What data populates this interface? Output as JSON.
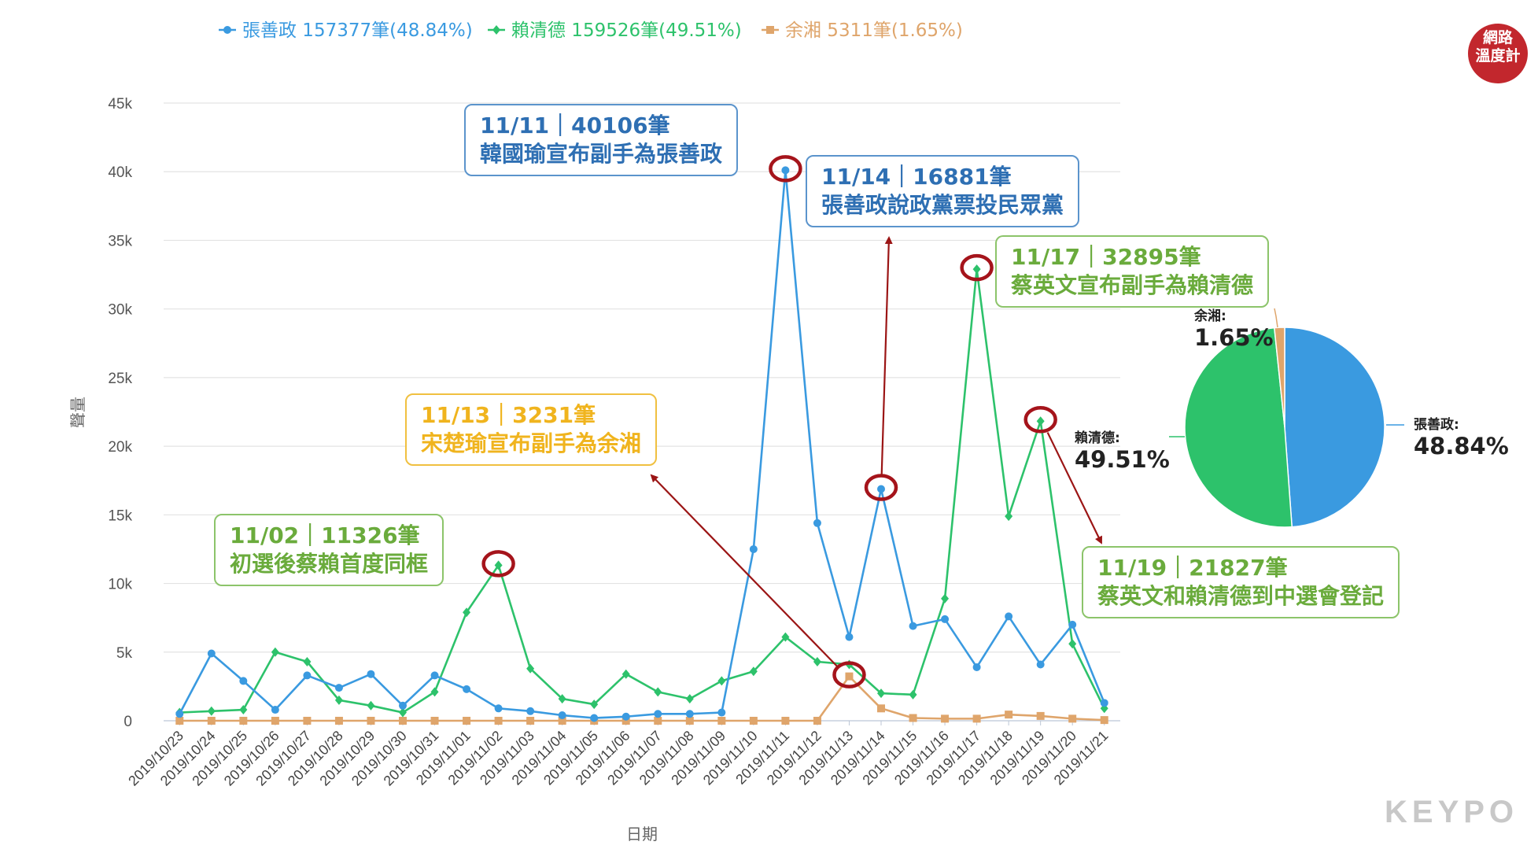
{
  "chart_data": [
    {
      "type": "line",
      "legend": {
        "placement": "top",
        "items": [
          {
            "label": "張善政 157377筆(48.84%)",
            "color": "#3a9ae0",
            "marker": "circle"
          },
          {
            "label": "賴清德 159526筆(49.51%)",
            "color": "#2dc26b",
            "marker": "diamond"
          },
          {
            "label": "余湘 5311筆(1.65%)",
            "color": "#dfa56b",
            "marker": "square"
          }
        ]
      },
      "xlabel": "日期",
      "ylabel": "聲量",
      "ylim": [
        0,
        45000
      ],
      "yticks": [
        0,
        5000,
        10000,
        15000,
        20000,
        25000,
        30000,
        35000,
        40000,
        45000
      ],
      "ytick_labels": [
        "0",
        "5k",
        "10k",
        "15k",
        "20k",
        "25k",
        "30k",
        "35k",
        "40k",
        "45k"
      ],
      "grid": true,
      "categories": [
        "2019/10/23",
        "2019/10/24",
        "2019/10/25",
        "2019/10/26",
        "2019/10/27",
        "2019/10/28",
        "2019/10/29",
        "2019/10/30",
        "2019/10/31",
        "2019/11/01",
        "2019/11/02",
        "2019/11/03",
        "2019/11/04",
        "2019/11/05",
        "2019/11/06",
        "2019/11/07",
        "2019/11/08",
        "2019/11/09",
        "2019/11/10",
        "2019/11/11",
        "2019/11/12",
        "2019/11/13",
        "2019/11/14",
        "2019/11/15",
        "2019/11/16",
        "2019/11/17",
        "2019/11/18",
        "2019/11/19",
        "2019/11/20",
        "2019/11/21"
      ],
      "series": [
        {
          "name": "張善政",
          "color": "#3a9ae0",
          "marker": "circle",
          "values": [
            500,
            4900,
            2900,
            800,
            3300,
            2400,
            3400,
            1100,
            3300,
            2300,
            900,
            700,
            400,
            200,
            300,
            500,
            500,
            600,
            12500,
            40106,
            14400,
            6100,
            16881,
            6900,
            7400,
            3900,
            7600,
            4100,
            7000,
            1300
          ]
        },
        {
          "name": "賴清德",
          "color": "#2dc26b",
          "marker": "diamond",
          "values": [
            600,
            700,
            800,
            5000,
            4300,
            1500,
            1100,
            600,
            2100,
            7900,
            11326,
            3800,
            1600,
            1200,
            3400,
            2100,
            1600,
            2900,
            3600,
            6100,
            4300,
            4100,
            2000,
            1900,
            8900,
            32895,
            14900,
            21827,
            5600,
            900
          ]
        },
        {
          "name": "余湘",
          "color": "#dfa56b",
          "marker": "square",
          "values": [
            0,
            0,
            0,
            0,
            0,
            0,
            0,
            0,
            0,
            0,
            0,
            0,
            0,
            0,
            0,
            0,
            0,
            0,
            0,
            0,
            0,
            3231,
            900,
            200,
            150,
            150,
            450,
            350,
            150,
            50
          ]
        }
      ],
      "highlights": [
        {
          "series": 1,
          "category": "2019/11/02"
        },
        {
          "series": 0,
          "category": "2019/11/11"
        },
        {
          "series": 2,
          "category": "2019/11/13"
        },
        {
          "series": 0,
          "category": "2019/11/14"
        },
        {
          "series": 1,
          "category": "2019/11/17"
        },
        {
          "series": 1,
          "category": "2019/11/19"
        }
      ],
      "annotations": [
        {
          "line1": "11/02｜11326筆",
          "line2": "初選後蔡賴首度同框",
          "color": "#6aab3c"
        },
        {
          "line1": "11/11｜40106筆",
          "line2": "韓國瑜宣布副手為張善政",
          "color": "#2e6fb3"
        },
        {
          "line1": "11/14｜16881筆",
          "line2": "張善政說政黨票投民眾黨",
          "color": "#2e6fb3"
        },
        {
          "line1": "11/17｜32895筆",
          "line2": "蔡英文宣布副手為賴清德",
          "color": "#6aab3c"
        },
        {
          "line1": "11/13｜3231筆",
          "line2": "宋楚瑜宣布副手為余湘",
          "color": "#f0b41e"
        },
        {
          "line1": "11/19｜21827筆",
          "line2": "蔡英文和賴清德到中選會登記",
          "color": "#6aab3c"
        }
      ]
    },
    {
      "type": "pie",
      "slices": [
        {
          "name": "張善政",
          "label": "張善政:",
          "pct_label": "48.84%",
          "value": 48.84,
          "color": "#3a9ae0"
        },
        {
          "name": "賴清德",
          "label": "賴清德:",
          "pct_label": "49.51%",
          "value": 49.51,
          "color": "#2dc26b"
        },
        {
          "name": "余湘",
          "label": "余湘:",
          "pct_label": "1.65%",
          "value": 1.65,
          "color": "#dfa56b"
        }
      ]
    }
  ],
  "logo": {
    "line1": "網路",
    "line2": "溫度計"
  },
  "brand": "KEYPO"
}
